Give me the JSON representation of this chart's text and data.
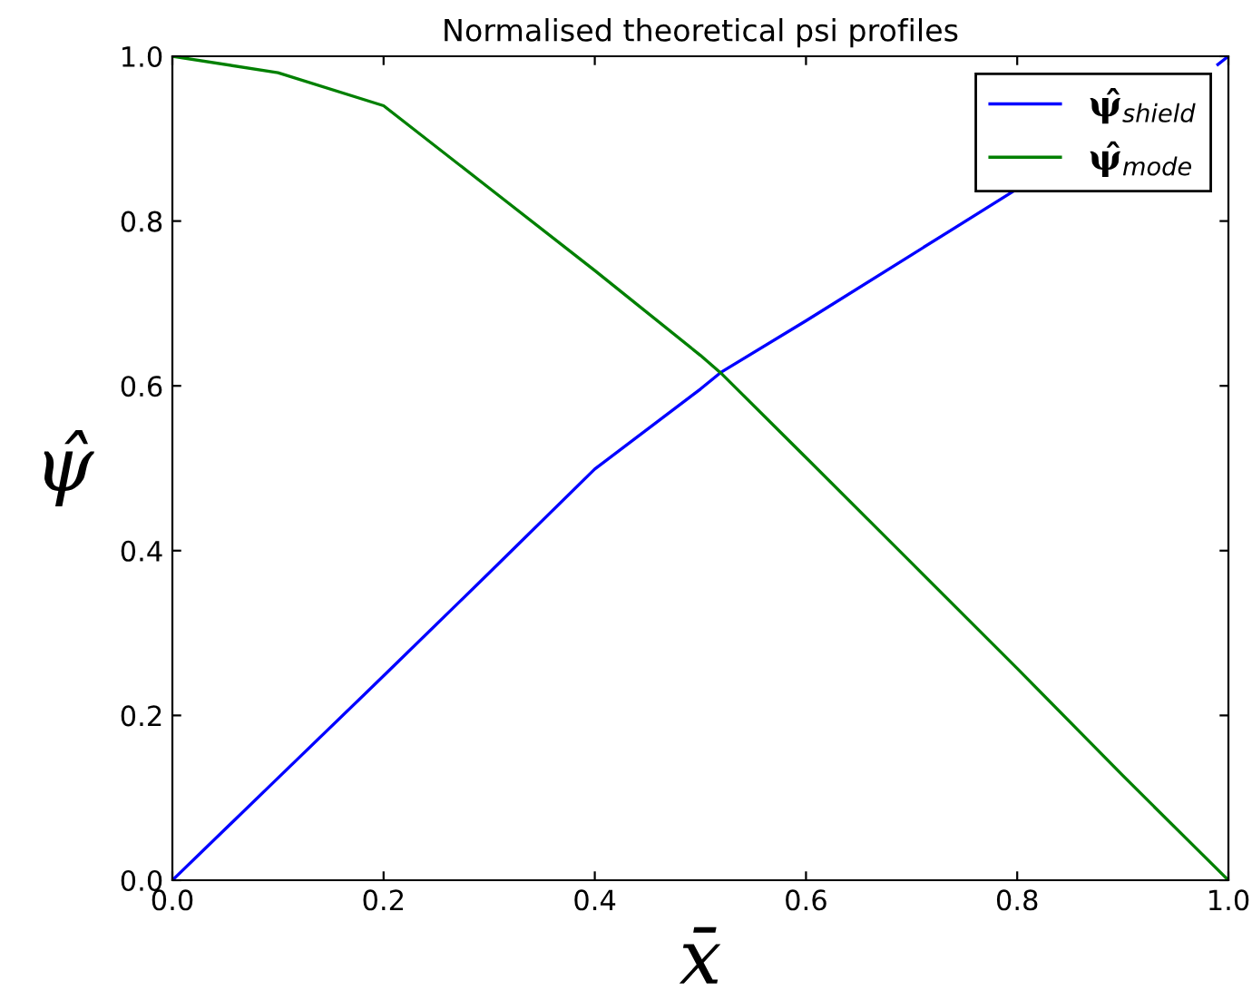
{
  "chart_data": {
    "type": "line",
    "title": "Normalised theoretical psi profiles",
    "xlabel": "x̄",
    "ylabel": "ψ̂",
    "x": [
      0,
      0.1,
      0.2,
      0.3,
      0.4,
      0.5,
      0.519,
      0.6,
      0.7,
      0.8,
      0.9,
      1.0
    ],
    "series": [
      {
        "name": "ψ̂$_{shield}$",
        "color": "#0000ff",
        "x": [
          0,
          0.1,
          0.2,
          0.3,
          0.4,
          0.5,
          0.519,
          0.6,
          0.7,
          0.8,
          0.9,
          0.99,
          1.0
        ],
        "values": [
          0,
          0.124,
          0.248,
          0.373,
          0.499,
          0.596,
          0.616,
          0.679,
          0.759,
          0.839,
          null,
          0.99,
          1.0
        ]
      },
      {
        "name": "ψ̂$_{mode}$",
        "color": "#008000",
        "values": [
          1.0,
          0.98,
          0.94,
          0.84,
          0.74,
          0.637,
          0.616,
          0.513,
          0.385,
          0.257,
          0.127,
          0
        ]
      }
    ],
    "xlim": [
      0,
      1
    ],
    "ylim": [
      0,
      1
    ],
    "xticks": [
      {
        "value": 0,
        "label": "0.0"
      },
      0.2,
      0.4,
      0.6,
      0.8,
      {
        "value": 1,
        "label": "1.0"
      }
    ],
    "yticks": [
      {
        "value": 0,
        "label": "0.0"
      },
      0.2,
      0.4,
      0.6,
      0.8,
      {
        "value": 1,
        "label": "1.0"
      }
    ],
    "grid": false,
    "legend": "top right",
    "marker": "none",
    "line_style": "solid"
  }
}
